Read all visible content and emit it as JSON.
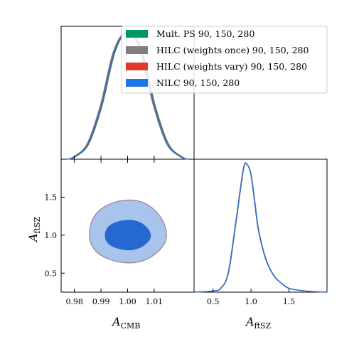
{
  "chart_data": {
    "type": "triangle",
    "legend_position": "top-right",
    "legend": [
      {
        "label": "Mult. PS 90, 150, 280",
        "color": "#009966"
      },
      {
        "label": "HILC (weights once) 90, 150, 280",
        "color": "#808080"
      },
      {
        "label": "HILC (weights vary) 90, 150, 280",
        "color": "#e03a2a"
      },
      {
        "label": "NILC 90, 150, 280",
        "color": "#1a75e6"
      }
    ],
    "params": [
      {
        "symbol": "A",
        "subscript": "CMB",
        "range": [
          0.975,
          1.025
        ],
        "ticks": [
          "0.98",
          "0.99",
          "1.00",
          "1.01"
        ],
        "tick_values": [
          0.98,
          0.99,
          1.0,
          1.01
        ]
      },
      {
        "symbol": "A",
        "subscript": "ftSZ",
        "range": [
          0.25,
          2.0
        ],
        "ticks": [
          "0.5",
          "1.0",
          "1.5"
        ],
        "tick_values": [
          0.5,
          1.0,
          1.5
        ]
      }
    ],
    "marginal_A_CMB": {
      "x": [
        0.9775,
        0.98,
        0.985,
        0.99,
        0.995,
        1.0,
        1.005,
        1.01,
        1.015,
        1.02,
        1.0225
      ],
      "y": [
        0.0,
        0.02,
        0.12,
        0.42,
        0.85,
        1.0,
        0.85,
        0.42,
        0.12,
        0.02,
        0.0
      ]
    },
    "marginal_A_ftSZ": {
      "x": [
        0.25,
        0.5,
        0.6,
        0.7,
        0.8,
        0.9,
        0.95,
        1.0,
        1.05,
        1.1,
        1.2,
        1.3,
        1.4,
        1.5,
        1.7,
        2.0
      ],
      "y": [
        0.0,
        0.01,
        0.03,
        0.15,
        0.55,
        0.97,
        1.0,
        0.92,
        0.7,
        0.48,
        0.25,
        0.13,
        0.07,
        0.03,
        0.01,
        0.0
      ]
    },
    "contour_2d": {
      "center": [
        1.0,
        0.98
      ],
      "sigma_68": {
        "dx": 0.0085,
        "dy_up": 0.22,
        "dy_down": 0.17
      },
      "sigma_95": {
        "dx": 0.0145,
        "dy_up": 0.49,
        "dy_down": 0.34
      },
      "fill_95": "#a8c4ec",
      "fill_68": "#2568d0"
    }
  }
}
